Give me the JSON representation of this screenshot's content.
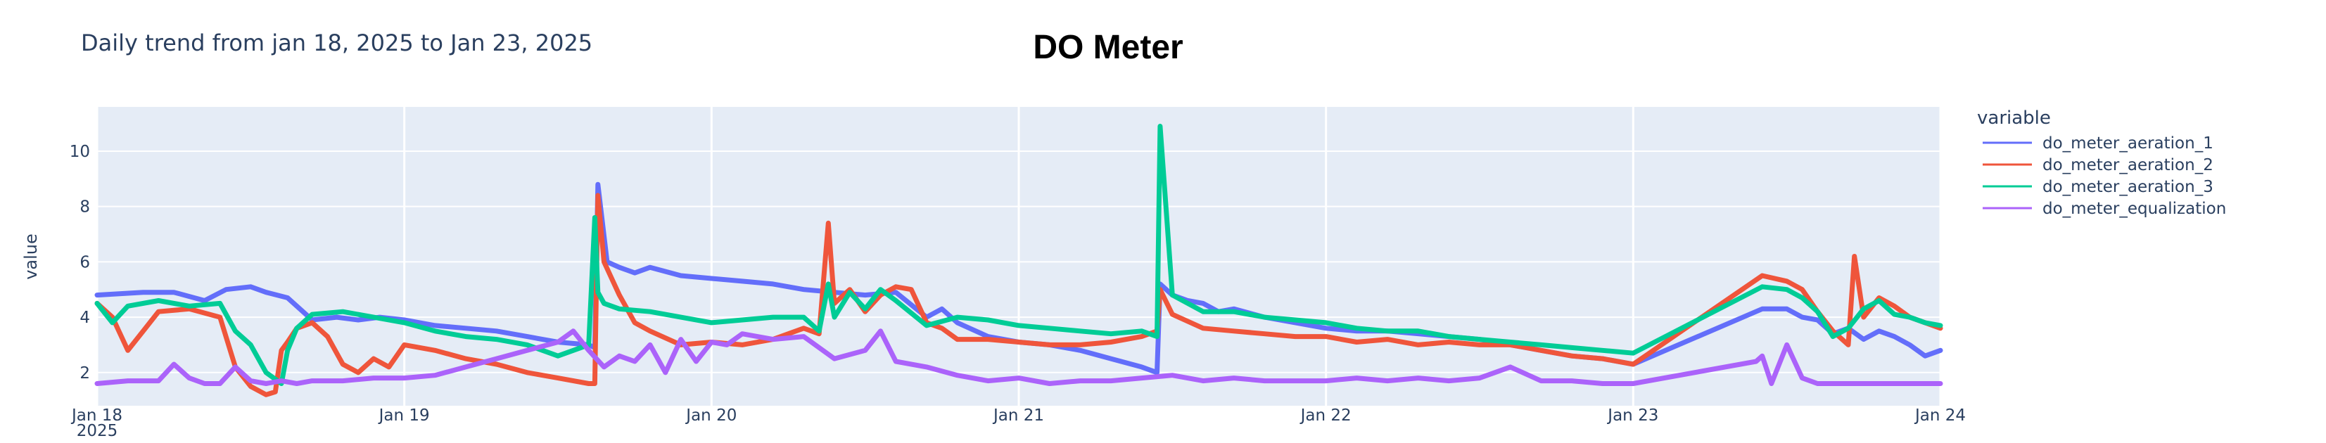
{
  "subtitle": "Daily trend from jan 18, 2025 to Jan 23, 2025",
  "chart_data": {
    "type": "line",
    "title": "DO Meter",
    "xlabel": "",
    "ylabel": "value",
    "xlim": [
      "2025-01-18",
      "2025-01-24"
    ],
    "ylim": [
      0.8,
      11.6
    ],
    "x_ticks": [
      "Jan 18",
      "Jan 19",
      "Jan 20",
      "Jan 21",
      "Jan 22",
      "Jan 23",
      "Jan 24"
    ],
    "x_tick_sublabel": "2025",
    "y_ticks": [
      "2",
      "4",
      "6",
      "8",
      "10"
    ],
    "y_tick_values": [
      2,
      4,
      6,
      8,
      10
    ],
    "grid": true,
    "background": "#e5ecf6",
    "legend": {
      "title": "variable",
      "position": "right"
    },
    "series": [
      {
        "name": "do_meter_aeration_1",
        "color": "#636efa",
        "x": [
          0,
          0.15,
          0.25,
          0.35,
          0.42,
          0.5,
          0.55,
          0.62,
          0.7,
          0.78,
          0.85,
          0.92,
          1.0,
          1.1,
          1.2,
          1.3,
          1.4,
          1.5,
          1.6,
          1.62,
          1.63,
          1.66,
          1.7,
          1.75,
          1.8,
          1.9,
          2.0,
          2.1,
          2.2,
          2.3,
          2.4,
          2.5,
          2.6,
          2.7,
          2.75,
          2.8,
          2.9,
          3.0,
          3.1,
          3.2,
          3.3,
          3.4,
          3.45,
          3.46,
          3.5,
          3.55,
          3.6,
          3.65,
          3.7,
          3.8,
          3.9,
          4.0,
          4.1,
          4.2,
          4.3,
          4.4,
          4.5,
          4.6,
          4.7,
          4.8,
          4.9,
          5.0,
          5.42,
          5.5,
          5.55,
          5.6,
          5.65,
          5.7,
          5.75,
          5.8,
          5.85,
          5.9,
          5.95,
          6.0
        ],
        "y": [
          4.8,
          4.9,
          4.9,
          4.6,
          5.0,
          5.1,
          4.9,
          4.7,
          3.9,
          4.0,
          3.9,
          4.0,
          3.9,
          3.7,
          3.6,
          3.5,
          3.3,
          3.1,
          3.0,
          2.9,
          8.8,
          6.0,
          5.8,
          5.6,
          5.8,
          5.5,
          5.4,
          5.3,
          5.2,
          5.0,
          4.9,
          4.8,
          4.9,
          4.0,
          4.3,
          3.8,
          3.3,
          3.1,
          3.0,
          2.8,
          2.5,
          2.2,
          2.0,
          5.2,
          4.8,
          4.6,
          4.5,
          4.2,
          4.3,
          4.0,
          3.8,
          3.6,
          3.5,
          3.5,
          3.4,
          3.3,
          3.2,
          3.0,
          2.8,
          2.6,
          2.5,
          2.3,
          4.3,
          4.3,
          4.0,
          3.9,
          3.4,
          3.6,
          3.2,
          3.5,
          3.3,
          3.0,
          2.6,
          2.8
        ]
      },
      {
        "name": "do_meter_aeration_2",
        "color": "#ef553b",
        "x": [
          0,
          0.05,
          0.1,
          0.15,
          0.2,
          0.3,
          0.4,
          0.45,
          0.5,
          0.55,
          0.58,
          0.6,
          0.62,
          0.65,
          0.7,
          0.75,
          0.8,
          0.85,
          0.9,
          0.95,
          1.0,
          1.1,
          1.2,
          1.3,
          1.4,
          1.5,
          1.6,
          1.62,
          1.63,
          1.65,
          1.7,
          1.75,
          1.8,
          1.9,
          2.0,
          2.1,
          2.2,
          2.3,
          2.35,
          2.38,
          2.4,
          2.45,
          2.5,
          2.55,
          2.6,
          2.65,
          2.7,
          2.75,
          2.8,
          2.9,
          3.0,
          3.1,
          3.2,
          3.3,
          3.4,
          3.45,
          3.46,
          3.5,
          3.6,
          3.7,
          3.8,
          3.9,
          4.0,
          4.1,
          4.2,
          4.3,
          4.4,
          4.5,
          4.6,
          4.7,
          4.8,
          4.9,
          5.0,
          5.42,
          5.5,
          5.55,
          5.6,
          5.65,
          5.7,
          5.72,
          5.75,
          5.8,
          5.85,
          5.9,
          5.95,
          6.0
        ],
        "y": [
          4.5,
          4.0,
          2.8,
          3.5,
          4.2,
          4.3,
          4.0,
          2.2,
          1.5,
          1.2,
          1.3,
          2.8,
          3.1,
          3.6,
          3.8,
          3.3,
          2.3,
          2.0,
          2.5,
          2.2,
          3.0,
          2.8,
          2.5,
          2.3,
          2.0,
          1.8,
          1.6,
          1.6,
          8.4,
          6.0,
          4.8,
          3.8,
          3.5,
          3.0,
          3.1,
          3.0,
          3.2,
          3.6,
          3.4,
          7.4,
          4.5,
          5.0,
          4.2,
          4.8,
          5.1,
          5.0,
          3.8,
          3.6,
          3.2,
          3.2,
          3.1,
          3.0,
          3.0,
          3.1,
          3.3,
          3.5,
          5.0,
          4.1,
          3.6,
          3.5,
          3.4,
          3.3,
          3.3,
          3.1,
          3.2,
          3.0,
          3.1,
          3.0,
          3.0,
          2.8,
          2.6,
          2.5,
          2.3,
          5.5,
          5.3,
          5.0,
          4.2,
          3.5,
          3.0,
          6.2,
          4.0,
          4.7,
          4.4,
          4.0,
          3.8,
          3.6
        ]
      },
      {
        "name": "do_meter_aeration_3",
        "color": "#00cc96",
        "x": [
          0,
          0.05,
          0.1,
          0.2,
          0.3,
          0.4,
          0.45,
          0.5,
          0.55,
          0.6,
          0.62,
          0.65,
          0.7,
          0.8,
          0.9,
          1.0,
          1.1,
          1.2,
          1.3,
          1.4,
          1.5,
          1.6,
          1.62,
          1.63,
          1.65,
          1.7,
          1.8,
          1.9,
          2.0,
          2.1,
          2.2,
          2.3,
          2.35,
          2.38,
          2.4,
          2.45,
          2.5,
          2.55,
          2.6,
          2.7,
          2.8,
          2.9,
          3.0,
          3.1,
          3.2,
          3.3,
          3.4,
          3.45,
          3.46,
          3.5,
          3.6,
          3.7,
          3.8,
          3.9,
          4.0,
          4.1,
          4.2,
          4.3,
          4.4,
          4.5,
          4.6,
          4.7,
          4.8,
          4.9,
          5.0,
          5.42,
          5.5,
          5.55,
          5.6,
          5.65,
          5.7,
          5.75,
          5.8,
          5.85,
          5.9,
          5.95,
          6.0
        ],
        "y": [
          4.5,
          3.8,
          4.4,
          4.6,
          4.4,
          4.5,
          3.5,
          3.0,
          2.0,
          1.6,
          2.8,
          3.6,
          4.1,
          4.2,
          4.0,
          3.8,
          3.5,
          3.3,
          3.2,
          3.0,
          2.6,
          3.0,
          7.6,
          4.9,
          4.5,
          4.3,
          4.2,
          4.0,
          3.8,
          3.9,
          4.0,
          4.0,
          3.5,
          5.2,
          4.0,
          4.9,
          4.3,
          5.0,
          4.6,
          3.7,
          4.0,
          3.9,
          3.7,
          3.6,
          3.5,
          3.4,
          3.5,
          3.3,
          10.9,
          4.8,
          4.2,
          4.2,
          4.0,
          3.9,
          3.8,
          3.6,
          3.5,
          3.5,
          3.3,
          3.2,
          3.1,
          3.0,
          2.9,
          2.8,
          2.7,
          5.1,
          5.0,
          4.7,
          4.2,
          3.3,
          3.6,
          4.3,
          4.6,
          4.1,
          4.0,
          3.8,
          3.7
        ]
      },
      {
        "name": "do_meter_equalization",
        "color": "#ab63fa",
        "x": [
          0,
          0.1,
          0.2,
          0.25,
          0.3,
          0.35,
          0.4,
          0.45,
          0.5,
          0.55,
          0.6,
          0.65,
          0.7,
          0.8,
          0.9,
          1.0,
          1.1,
          1.2,
          1.3,
          1.4,
          1.5,
          1.55,
          1.6,
          1.65,
          1.7,
          1.75,
          1.8,
          1.85,
          1.9,
          1.95,
          2.0,
          2.05,
          2.1,
          2.2,
          2.3,
          2.4,
          2.5,
          2.55,
          2.6,
          2.7,
          2.8,
          2.9,
          3.0,
          3.1,
          3.2,
          3.3,
          3.4,
          3.5,
          3.6,
          3.7,
          3.8,
          3.9,
          4.0,
          4.1,
          4.2,
          4.3,
          4.4,
          4.5,
          4.6,
          4.7,
          4.8,
          4.9,
          5.0,
          5.4,
          5.42,
          5.45,
          5.5,
          5.55,
          5.6,
          5.7,
          5.8,
          5.9,
          6.0
        ],
        "y": [
          1.6,
          1.7,
          1.7,
          2.3,
          1.8,
          1.6,
          1.6,
          2.2,
          1.7,
          1.6,
          1.7,
          1.6,
          1.7,
          1.7,
          1.8,
          1.8,
          1.9,
          2.2,
          2.5,
          2.8,
          3.1,
          3.5,
          2.8,
          2.2,
          2.6,
          2.4,
          3.0,
          2.0,
          3.2,
          2.4,
          3.1,
          3.0,
          3.4,
          3.2,
          3.3,
          2.5,
          2.8,
          3.5,
          2.4,
          2.2,
          1.9,
          1.7,
          1.8,
          1.6,
          1.7,
          1.7,
          1.8,
          1.9,
          1.7,
          1.8,
          1.7,
          1.7,
          1.7,
          1.8,
          1.7,
          1.8,
          1.7,
          1.8,
          2.2,
          1.7,
          1.7,
          1.6,
          1.6,
          2.4,
          2.6,
          1.6,
          3.0,
          1.8,
          1.6,
          1.6,
          1.6,
          1.6,
          1.6
        ]
      }
    ]
  }
}
